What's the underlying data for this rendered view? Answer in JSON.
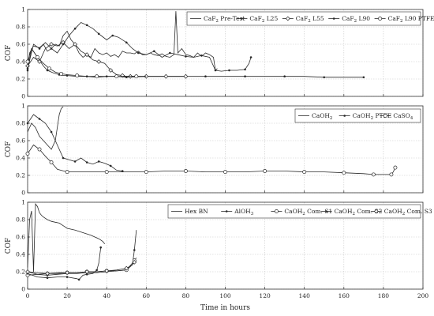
{
  "chart_data": [
    {
      "type": "line",
      "ylabel": "COF",
      "xlabel": "",
      "xlim": [
        0,
        200
      ],
      "ylim": [
        0,
        1
      ],
      "grid": true,
      "legend_position": "top-right",
      "series": [
        {
          "name": "CaF₂ Pre-Test",
          "label_main": "CaF",
          "label_sub": "2",
          "label_rest": " Pre-Test",
          "marker": "none",
          "color": "#2a2a2a",
          "x": [
            0,
            1,
            3,
            6,
            8,
            10,
            12,
            14,
            16,
            18,
            20,
            22,
            24,
            26,
            28,
            30,
            32,
            34,
            36,
            38,
            40,
            42,
            44,
            46,
            48,
            50,
            52,
            54,
            56,
            58,
            60,
            62,
            64,
            66,
            68,
            70,
            72,
            74,
            75,
            76,
            78,
            80,
            82,
            84,
            86,
            88,
            90,
            92,
            94,
            95,
            96
          ],
          "y": [
            0.28,
            0.5,
            0.58,
            0.56,
            0.6,
            0.52,
            0.55,
            0.6,
            0.58,
            0.7,
            0.75,
            0.65,
            0.6,
            0.5,
            0.45,
            0.48,
            0.45,
            0.55,
            0.5,
            0.48,
            0.5,
            0.46,
            0.48,
            0.45,
            0.52,
            0.5,
            0.5,
            0.49,
            0.52,
            0.48,
            0.48,
            0.5,
            0.48,
            0.47,
            0.49,
            0.46,
            0.45,
            0.48,
            0.98,
            0.5,
            0.55,
            0.48,
            0.47,
            0.45,
            0.5,
            0.46,
            0.5,
            0.48,
            0.45,
            0.3,
            0.32
          ]
        },
        {
          "name": "CaF₂ L25",
          "label_main": "CaF",
          "label_sub": "2",
          "label_rest": " L25",
          "marker": "dot",
          "color": "#2a2a2a",
          "x": [
            0,
            2,
            5,
            8,
            10,
            13,
            16,
            18,
            20,
            25,
            30,
            35,
            40,
            45,
            50,
            60,
            70,
            80,
            90,
            100,
            110,
            120,
            130,
            140,
            150,
            160,
            170
          ],
          "y": [
            0.3,
            0.55,
            0.45,
            0.35,
            0.3,
            0.27,
            0.25,
            0.24,
            0.24,
            0.23,
            0.23,
            0.22,
            0.23,
            0.23,
            0.22,
            0.23,
            0.23,
            0.23,
            0.23,
            0.23,
            0.23,
            0.23,
            0.23,
            0.23,
            0.22,
            0.22,
            0.22
          ]
        },
        {
          "name": "CaF₂ L55",
          "label_main": "CaF",
          "label_sub": "2",
          "label_rest": " L55",
          "marker": "diamond",
          "color": "#2a2a2a",
          "x": [
            0,
            3,
            6,
            9,
            12,
            15,
            18,
            21,
            24,
            27,
            30,
            33,
            36,
            39,
            42,
            45,
            48,
            50,
            52,
            55,
            60,
            65,
            70,
            75,
            80
          ],
          "y": [
            0.35,
            0.45,
            0.4,
            0.55,
            0.6,
            0.58,
            0.62,
            0.55,
            0.6,
            0.52,
            0.48,
            0.42,
            0.4,
            0.38,
            0.3,
            0.25,
            0.24,
            0.23,
            0.23,
            0.23,
            0.23,
            0.23,
            0.23,
            0.23,
            0.23
          ]
        },
        {
          "name": "CaF₂ L90",
          "label_main": "CaF",
          "label_sub": "2",
          "label_rest": " L90",
          "marker": "dot",
          "color": "#2a2a2a",
          "x": [
            0,
            3,
            6,
            9,
            12,
            15,
            18,
            21,
            24,
            27,
            30,
            33,
            36,
            40,
            43,
            46,
            50,
            53,
            56,
            60,
            64,
            68,
            72,
            76,
            80,
            84,
            88,
            92,
            95,
            98,
            102,
            106,
            110,
            112,
            113
          ],
          "y": [
            0.32,
            0.6,
            0.55,
            0.62,
            0.55,
            0.5,
            0.6,
            0.7,
            0.78,
            0.85,
            0.82,
            0.78,
            0.72,
            0.65,
            0.7,
            0.68,
            0.62,
            0.55,
            0.5,
            0.48,
            0.52,
            0.45,
            0.5,
            0.48,
            0.46,
            0.45,
            0.47,
            0.45,
            0.3,
            0.29,
            0.3,
            0.3,
            0.31,
            0.38,
            0.45
          ]
        },
        {
          "name": "CaF₂ L90 PTFE",
          "label_main": "CaF",
          "label_sub": "2",
          "label_rest": " L90 PTFE",
          "marker": "circle",
          "color": "#2a2a2a",
          "x": [
            0,
            2,
            5,
            8,
            11,
            14,
            17,
            20,
            25,
            30,
            35,
            40,
            45,
            50,
            55,
            60
          ],
          "y": [
            0.4,
            0.55,
            0.45,
            0.38,
            0.32,
            0.28,
            0.26,
            0.25,
            0.24,
            0.23,
            0.23,
            0.23,
            0.23,
            0.23,
            0.23,
            0.23
          ]
        }
      ],
      "xticks": [
        0,
        20,
        40,
        60,
        80,
        100,
        120,
        140,
        160,
        180,
        200
      ],
      "yticks": [
        "0",
        "0.2",
        "0.4",
        "0.6",
        "0.8",
        "1"
      ]
    },
    {
      "type": "line",
      "ylabel": "COF",
      "xlabel": "",
      "xlim": [
        0,
        200
      ],
      "ylim": [
        0,
        1
      ],
      "grid": true,
      "legend_position": "top-right",
      "series": [
        {
          "name": "CaOH₂",
          "label_main": "CaOH",
          "label_sub": "2",
          "label_rest": "",
          "marker": "none",
          "color": "#2a2a2a",
          "x": [
            0,
            2,
            4,
            6,
            8,
            10,
            12,
            14,
            15,
            16,
            17,
            18
          ],
          "y": [
            0.7,
            0.8,
            0.75,
            0.65,
            0.6,
            0.55,
            0.5,
            0.6,
            0.75,
            0.9,
            0.97,
            0.99
          ]
        },
        {
          "name": "CaOH₂ PTFE",
          "label_main": "CaOH",
          "label_sub": "2",
          "label_rest": " PTFE",
          "marker": "dot",
          "color": "#2a2a2a",
          "x": [
            0,
            3,
            6,
            9,
            12,
            15,
            18,
            21,
            24,
            27,
            30,
            33,
            36,
            39,
            42,
            45,
            48
          ],
          "y": [
            0.8,
            0.9,
            0.85,
            0.8,
            0.7,
            0.55,
            0.4,
            0.38,
            0.36,
            0.4,
            0.35,
            0.33,
            0.36,
            0.34,
            0.31,
            0.26,
            0.25
          ]
        },
        {
          "name": "CaSO₄",
          "label_main": "CaSO",
          "label_sub": "4",
          "label_rest": "",
          "marker": "circle",
          "color": "#2a2a2a",
          "x": [
            0,
            3,
            6,
            9,
            12,
            15,
            20,
            30,
            40,
            50,
            60,
            70,
            80,
            90,
            100,
            110,
            120,
            130,
            140,
            150,
            160,
            170,
            175,
            180,
            184,
            185,
            186
          ],
          "y": [
            0.45,
            0.55,
            0.5,
            0.42,
            0.35,
            0.27,
            0.24,
            0.24,
            0.24,
            0.24,
            0.24,
            0.25,
            0.25,
            0.24,
            0.24,
            0.24,
            0.25,
            0.25,
            0.24,
            0.24,
            0.23,
            0.22,
            0.21,
            0.21,
            0.21,
            0.24,
            0.29
          ]
        }
      ],
      "xticks": [
        0,
        20,
        40,
        60,
        80,
        100,
        120,
        140,
        160,
        180,
        200
      ],
      "yticks": [
        "0",
        "0.2",
        "0.4",
        "0.6",
        "0.8",
        "1"
      ]
    },
    {
      "type": "line",
      "ylabel": "COF",
      "xlabel": "Time in hours",
      "xlim": [
        0,
        200
      ],
      "ylim": [
        0,
        1
      ],
      "grid": true,
      "legend_position": "top-right",
      "series": [
        {
          "name": "Hex BN",
          "label_main": "Hex BN",
          "label_sub": "",
          "label_rest": "",
          "marker": "none",
          "color": "#2a2a2a",
          "x": [
            0,
            1,
            2,
            3,
            4,
            5,
            6,
            7,
            8,
            10,
            12,
            14,
            16,
            18,
            20,
            24,
            28,
            32,
            36,
            38,
            39
          ],
          "y": [
            0.25,
            0.8,
            0.9,
            0.2,
            0.98,
            0.95,
            0.88,
            0.85,
            0.83,
            0.8,
            0.78,
            0.77,
            0.76,
            0.73,
            0.7,
            0.68,
            0.65,
            0.62,
            0.58,
            0.55,
            0.52
          ]
        },
        {
          "name": "AlOH₃",
          "label_main": "AlOH",
          "label_sub": "3",
          "label_rest": "",
          "marker": "dot",
          "color": "#2a2a2a",
          "x": [
            0,
            5,
            10,
            15,
            20,
            25,
            30,
            35,
            40,
            45,
            50,
            53,
            54,
            55
          ],
          "y": [
            0.2,
            0.17,
            0.16,
            0.17,
            0.18,
            0.18,
            0.19,
            0.19,
            0.2,
            0.21,
            0.22,
            0.28,
            0.45,
            0.68
          ]
        },
        {
          "name": "CaOH₂ Com. S1",
          "label_main": "CaOH",
          "label_sub": "2",
          "label_rest": " Com. S1",
          "marker": "circle",
          "color": "#2a2a2a",
          "x": [
            0,
            5,
            10,
            15,
            20,
            25,
            30,
            35,
            40,
            45,
            50,
            53,
            54,
            55
          ],
          "y": [
            0.16,
            0.17,
            0.18,
            0.19,
            0.19,
            0.19,
            0.2,
            0.2,
            0.21,
            0.21,
            0.22,
            0.3,
            0.33,
            0.36
          ]
        },
        {
          "name": "CaOH₂ Com. S2",
          "label_main": "CaOH",
          "label_sub": "2",
          "label_rest": " Com. S2",
          "marker": "dot",
          "color": "#2a2a2a",
          "x": [
            0,
            5,
            10,
            15,
            20,
            25,
            26,
            28,
            30,
            33,
            35,
            36,
            37
          ],
          "y": [
            0.18,
            0.14,
            0.13,
            0.14,
            0.14,
            0.12,
            0.11,
            0.16,
            0.17,
            0.18,
            0.22,
            0.3,
            0.48
          ]
        },
        {
          "name": "CaOH₂ Com. S3",
          "label_main": "CaOH",
          "label_sub": "2",
          "label_rest": " Com. S3",
          "marker": "diamond",
          "color": "#2a2a2a",
          "x": [
            0,
            5,
            10,
            15,
            20,
            25,
            30,
            35,
            40,
            45,
            50,
            53,
            54
          ],
          "y": [
            0.2,
            0.19,
            0.18,
            0.18,
            0.19,
            0.19,
            0.2,
            0.2,
            0.21,
            0.22,
            0.24,
            0.28,
            0.31
          ]
        }
      ],
      "xticks": [
        0,
        20,
        40,
        60,
        80,
        100,
        120,
        140,
        160,
        180,
        200
      ],
      "yticks": [
        "0",
        "0.2",
        "0.4",
        "0.6",
        "0.8",
        "1"
      ]
    }
  ]
}
